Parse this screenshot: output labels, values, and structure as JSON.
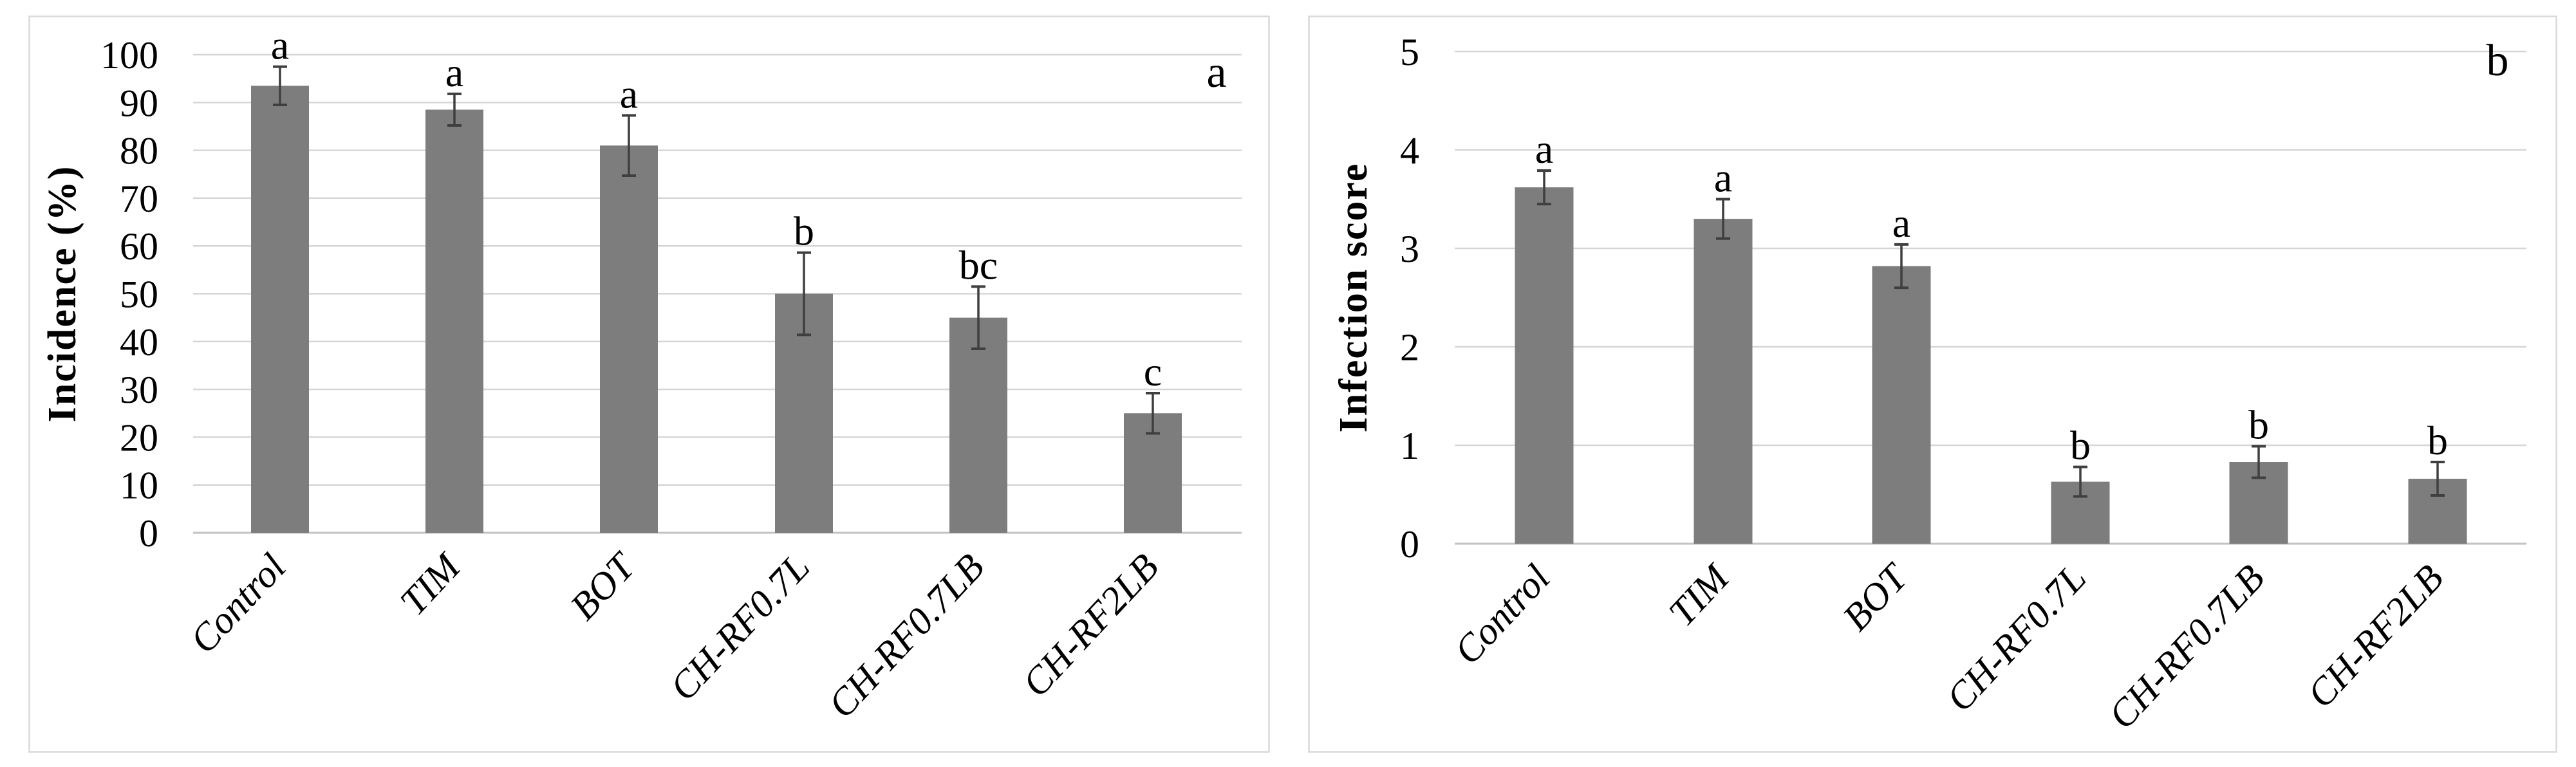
{
  "figure": {
    "background_color": "#ffffff",
    "bar_color": "#7d7d7d",
    "error_bar_color": "#3f3f3f",
    "gridline_color": "#d6d6d6",
    "axis_line_color": "#c3c3c3",
    "panel_border_color": "#d9d9d9",
    "text_color": "#000000"
  },
  "chart_data": [
    {
      "type": "bar",
      "panel_label": "a",
      "title": "",
      "xlabel": "",
      "ylabel": "Incidence (%)",
      "ylim": [
        0,
        100
      ],
      "yticks": [
        0,
        10,
        20,
        30,
        40,
        50,
        60,
        70,
        80,
        90,
        100
      ],
      "grid": true,
      "legend_position": "none",
      "categories": [
        "Control",
        "TIM",
        "BOT",
        "CH-RF0.7L",
        "CH-RF0.7LB",
        "CH-RF2LB"
      ],
      "values": [
        93.5,
        88.5,
        81,
        50,
        45,
        25
      ],
      "errors": [
        4,
        3.3,
        6.3,
        8.6,
        6.5,
        4.2
      ],
      "sig_letters": [
        "a",
        "a",
        "a",
        "b",
        "bc",
        "c"
      ]
    },
    {
      "type": "bar",
      "panel_label": "b",
      "title": "",
      "xlabel": "",
      "ylabel": "Infection score",
      "ylim": [
        0,
        5
      ],
      "yticks": [
        0,
        1,
        2,
        3,
        4,
        5
      ],
      "grid": true,
      "legend_position": "none",
      "categories": [
        "Control",
        "TIM",
        "BOT",
        "CH-RF0.7L",
        "CH-RF0.7LB",
        "CH-RF2LB"
      ],
      "values": [
        3.62,
        3.3,
        2.82,
        0.63,
        0.83,
        0.66
      ],
      "errors": [
        0.17,
        0.2,
        0.22,
        0.15,
        0.16,
        0.17
      ],
      "sig_letters": [
        "a",
        "a",
        "a",
        "b",
        "b",
        "b"
      ]
    }
  ]
}
